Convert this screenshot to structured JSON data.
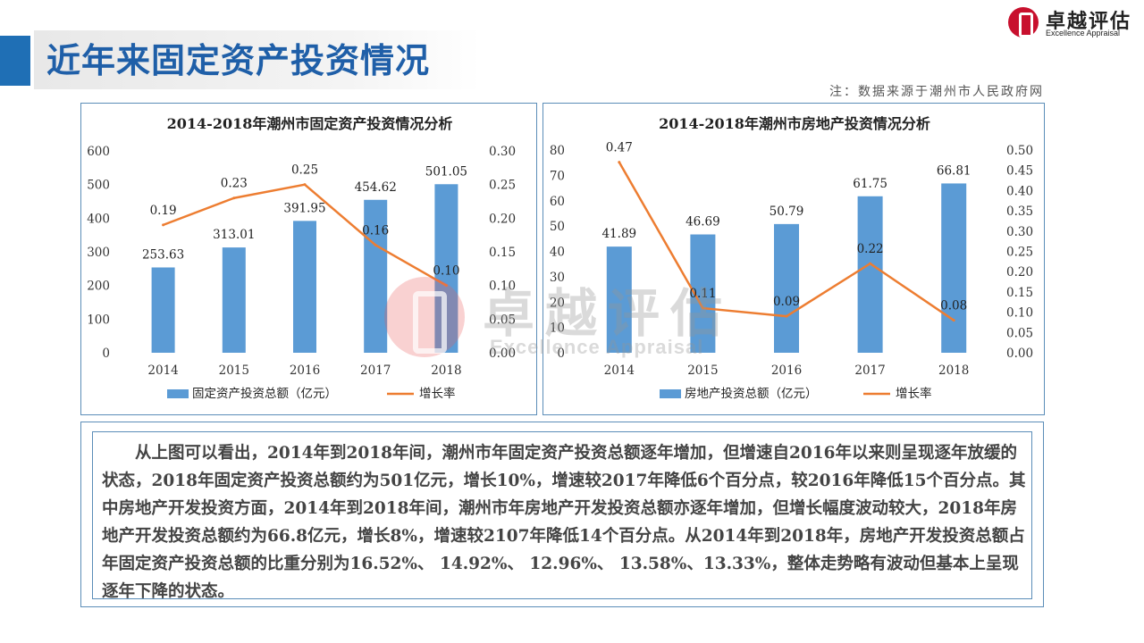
{
  "page": {
    "title": "近年来固定资产投资情况",
    "source_note": "注：数据来源于潮州市人民政府网"
  },
  "logo": {
    "name_cn": "卓越评估",
    "name_en": "Excellence Appraisal"
  },
  "watermark": {
    "text_cn": "卓越评估",
    "text_en": "Excellence Appraisal"
  },
  "analysis_text": "从上图可以看出，2014年到2018年间，潮州市年固定资产投资总额逐年增加，但增速自2016年以来则呈现逐年放缓的状态，2018年固定资产投资总额约为501亿元，增长10%，增速较2017年降低6个百分点，较2016年降低15个百分点。其中房地产开发投资方面，2014年到2018年间，潮州市年房地产开发投资总额亦逐年增加，但增长幅度波动较大，2018年房地产开发投资总额约为66.8亿元，增长8%，增速较2107年降低14个百分点。从2014年到2018年，房地产开发投资总额占年固定资产投资总额的比重分别为16.52%、 14.92%、 12.96%、 13.58%、13.33%，整体走势略有波动但基本上呈现逐年下降的状态。",
  "colors": {
    "bar": "#5b9bd5",
    "line": "#ed7d31",
    "title_blue": "#1f5fa8"
  },
  "chart_data": [
    {
      "type": "bar",
      "title": "2014-2018年潮州市固定资产投资情况分析",
      "categories": [
        "2014",
        "2015",
        "2016",
        "2017",
        "2018"
      ],
      "series": [
        {
          "name": "固定资产投资总额（亿元）",
          "type": "bar",
          "axis": "left",
          "values": [
            253.63,
            313.01,
            391.95,
            454.62,
            501.05
          ],
          "labels": [
            "253.63",
            "313.01",
            "391.95",
            "454.62",
            "501.05"
          ]
        },
        {
          "name": "增长率",
          "type": "line",
          "axis": "right",
          "values": [
            0.19,
            0.23,
            0.25,
            0.16,
            0.1
          ],
          "labels": [
            "0.19",
            "0.23",
            "0.25",
            "0.16",
            "0.10"
          ]
        }
      ],
      "left_axis": {
        "min": 0,
        "max": 600,
        "ticks": [
          "0",
          "100",
          "200",
          "300",
          "400",
          "500",
          "600"
        ]
      },
      "right_axis": {
        "min": 0,
        "max": 0.3,
        "ticks": [
          "0.00",
          "0.05",
          "0.10",
          "0.15",
          "0.20",
          "0.25",
          "0.30"
        ]
      },
      "grid": false,
      "legend_position": "bottom"
    },
    {
      "type": "bar",
      "title": "2014-2018年潮州市房地产投资情况分析",
      "categories": [
        "2014",
        "2015",
        "2016",
        "2017",
        "2018"
      ],
      "series": [
        {
          "name": "房地产投资总额（亿元）",
          "type": "bar",
          "axis": "left",
          "values": [
            41.89,
            46.69,
            50.79,
            61.75,
            66.81
          ],
          "labels": [
            "41.89",
            "46.69",
            "50.79",
            "61.75",
            "66.81"
          ]
        },
        {
          "name": "增长率",
          "type": "line",
          "axis": "right",
          "values": [
            0.47,
            0.11,
            0.09,
            0.22,
            0.08
          ],
          "labels": [
            "0.47",
            "0.11",
            "0.09",
            "0.22",
            "0.08"
          ]
        }
      ],
      "left_axis": {
        "min": 0,
        "max": 80,
        "ticks": [
          "0",
          "10",
          "20",
          "30",
          "40",
          "50",
          "60",
          "70",
          "80"
        ]
      },
      "right_axis": {
        "min": 0,
        "max": 0.5,
        "ticks": [
          "0.00",
          "0.05",
          "0.10",
          "0.15",
          "0.20",
          "0.25",
          "0.30",
          "0.35",
          "0.40",
          "0.45",
          "0.50"
        ]
      },
      "grid": false,
      "legend_position": "bottom"
    }
  ]
}
